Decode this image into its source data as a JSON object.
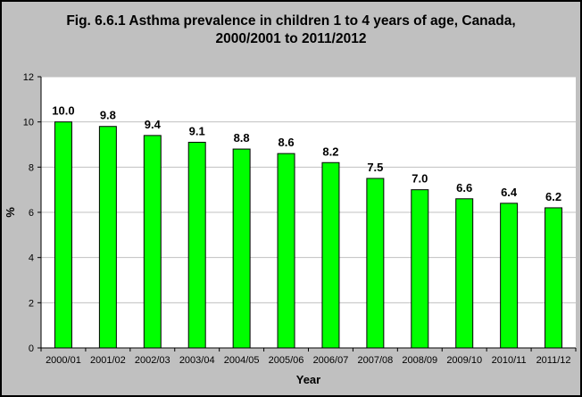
{
  "chart_data": {
    "type": "bar",
    "title_line1": "Fig. 6.6.1 Asthma prevalence in children 1 to 4 years of age, Canada,",
    "title_line2": "2000/2001 to 2011/2012",
    "xlabel": "Year",
    "ylabel": "%",
    "categories": [
      "2000/01",
      "2001/02",
      "2002/03",
      "2003/04",
      "2004/05",
      "2005/06",
      "2006/07",
      "2007/08",
      "2008/09",
      "2009/10",
      "2010/11",
      "2011/12"
    ],
    "values": [
      10.0,
      9.8,
      9.4,
      9.1,
      8.8,
      8.6,
      8.2,
      7.5,
      7.0,
      6.6,
      6.4,
      6.2
    ],
    "data_labels": [
      "10.0",
      "9.8",
      "9.4",
      "9.1",
      "8.8",
      "8.6",
      "8.2",
      "7.5",
      "7.0",
      "6.6",
      "6.4",
      "6.2"
    ],
    "yticks": [
      0,
      2,
      4,
      6,
      8,
      10,
      12
    ],
    "ylim": [
      0,
      12
    ],
    "grid": true,
    "legend": "none",
    "colors": {
      "bar_fill": "#00ff00",
      "bar_stroke": "#000000",
      "plot_background": "#ffffff",
      "chart_background": "#c0c0c0",
      "gridline": "#c0c0c0"
    }
  }
}
